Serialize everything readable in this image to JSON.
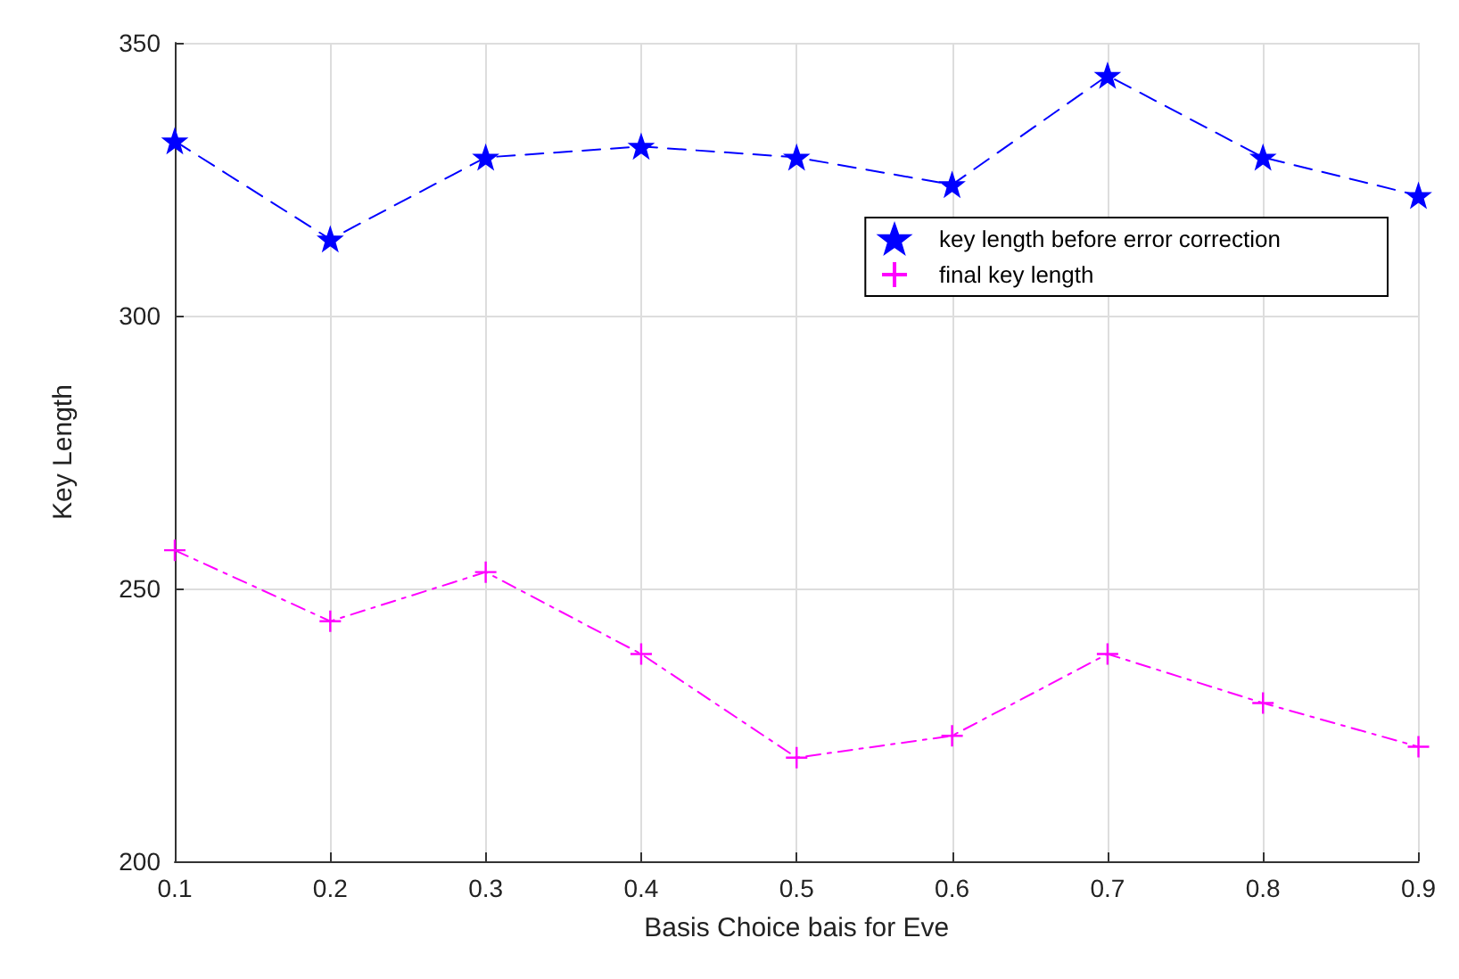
{
  "chart_data": {
    "type": "line",
    "xlabel": "Basis Choice bais for Eve",
    "ylabel": "Key Length",
    "x": [
      0.1,
      0.2,
      0.3,
      0.4,
      0.5,
      0.6,
      0.7,
      0.8,
      0.9
    ],
    "series": [
      {
        "name": "key length before error correction",
        "color": "#0000ff",
        "marker": "star",
        "line_style": "dashed",
        "values": [
          332,
          314,
          329,
          331,
          329,
          324,
          344,
          329,
          322
        ]
      },
      {
        "name": "final key length",
        "color": "#ff00ff",
        "marker": "cross",
        "line_style": "dashdot",
        "values": [
          257,
          244,
          253,
          238,
          219,
          223,
          238,
          229,
          221
        ]
      }
    ],
    "xlim": [
      0.1,
      0.9
    ],
    "xticks": [
      0.1,
      0.2,
      0.3,
      0.4,
      0.5,
      0.6,
      0.7,
      0.8,
      0.9
    ],
    "ylim": [
      200,
      350
    ],
    "yticks": [
      200,
      250,
      300,
      350
    ],
    "grid": true,
    "legend": "top right"
  }
}
